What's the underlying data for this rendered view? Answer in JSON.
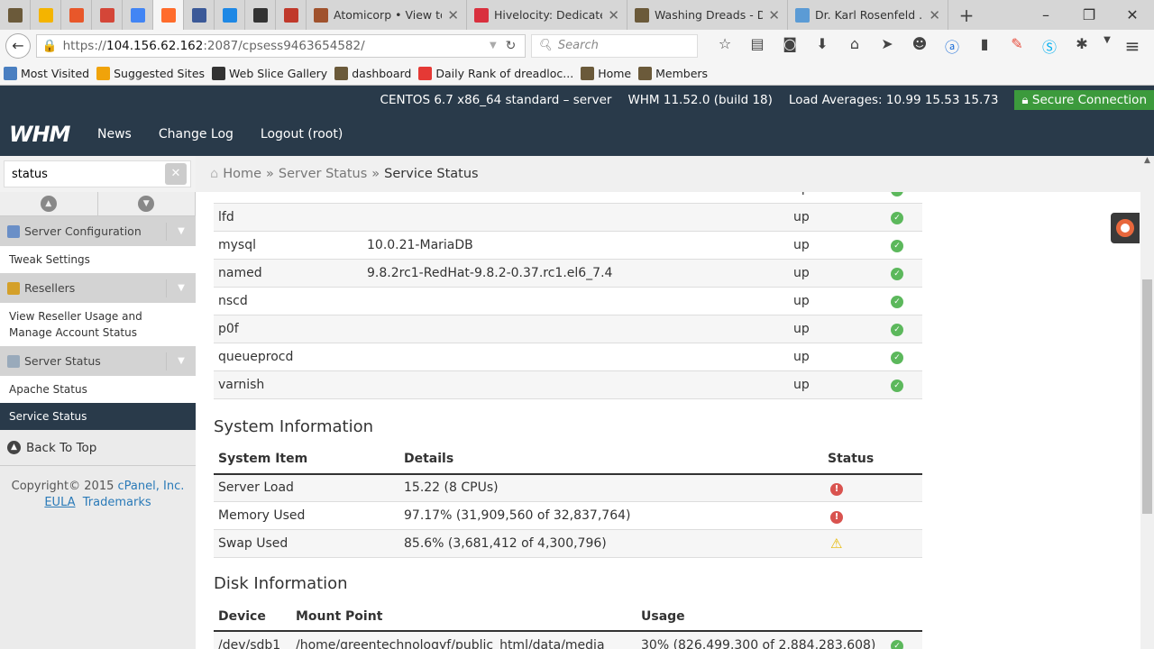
{
  "browser": {
    "pinned_tabs": [
      {
        "icon": "dreadlocks-icon",
        "color": "#6b5a3a"
      },
      {
        "icon": "google-drive-icon",
        "color": "#f4b400"
      },
      {
        "icon": "analytics-icon",
        "color": "#e8572a"
      },
      {
        "icon": "gmail-icon",
        "color": "#d44638"
      },
      {
        "icon": "google-icon",
        "color": "#4285f4"
      },
      {
        "icon": "cpanel-icon",
        "color": "#ff6c2c"
      },
      {
        "icon": "facebook-icon",
        "color": "#3b5998"
      },
      {
        "icon": "arrows-icon",
        "color": "#1e88e5"
      },
      {
        "icon": "globe-icon",
        "color": "#333333"
      },
      {
        "icon": "shield-icon",
        "color": "#c0392b"
      }
    ],
    "tabs": [
      {
        "title": "Atomicorp • View to...",
        "color": "#a0522d"
      },
      {
        "title": "Hivelocity: Dedicate...",
        "color": "#d9303e"
      },
      {
        "title": "Washing Dreads - D...",
        "color": "#6b5a3a"
      },
      {
        "title": "Dr. Karl Rosenfeld ...",
        "color": "#5b9bd5"
      }
    ],
    "new_tab": "+",
    "url": {
      "prefix": "https://",
      "host": "104.156.62.162",
      "path": ":2087/cpsess9463654582/"
    },
    "search_placeholder": "Search",
    "bookmarks": [
      {
        "label": "Most Visited",
        "color": "#4a7fc1"
      },
      {
        "label": "Suggested Sites",
        "color": "#f0a30a"
      },
      {
        "label": "Web Slice Gallery",
        "color": "#333333"
      },
      {
        "label": "dashboard",
        "color": "#6b5a3a"
      },
      {
        "label": "Daily Rank of dreadloc...",
        "color": "#e53935"
      },
      {
        "label": "Home",
        "color": "#6b5a3a"
      },
      {
        "label": "Members",
        "color": "#6b5a3a"
      }
    ]
  },
  "whm": {
    "os": "CENTOS 6.7 x86_64 standard – server",
    "version": "WHM 11.52.0 (build 18)",
    "load": "Load Averages: 10.99 15.53 15.73",
    "secure": "Secure Connection",
    "logo": "WHM",
    "nav": [
      "News",
      "Change Log",
      "Logout (root)"
    ]
  },
  "sidebar": {
    "search_value": "status",
    "groups": [
      {
        "label": "Server Configuration",
        "items": [
          "Tweak Settings"
        ]
      },
      {
        "label": "Resellers",
        "items": [
          "View Reseller Usage and Manage Account Status"
        ]
      },
      {
        "label": "Server Status",
        "items": [
          "Apache Status",
          "Service Status"
        ]
      }
    ],
    "active": "Service Status",
    "back_to_top": "Back To Top",
    "copyright": "Copyright© 2015",
    "company": "cPanel, Inc.",
    "eula": "EULA",
    "trademarks": "Trademarks"
  },
  "breadcrumb": [
    "Home",
    "Server Status",
    "Service Status"
  ],
  "breadcrumb_sep": "»",
  "services": [
    {
      "name": "",
      "version": "",
      "status": "up"
    },
    {
      "name": "lfd",
      "version": "",
      "status": "up"
    },
    {
      "name": "mysql",
      "version": "10.0.21-MariaDB",
      "status": "up"
    },
    {
      "name": "named",
      "version": "9.8.2rc1-RedHat-9.8.2-0.37.rc1.el6_7.4",
      "status": "up"
    },
    {
      "name": "nscd",
      "version": "",
      "status": "up"
    },
    {
      "name": "p0f",
      "version": "",
      "status": "up"
    },
    {
      "name": "queueprocd",
      "version": "",
      "status": "up"
    },
    {
      "name": "varnish",
      "version": "",
      "status": "up"
    }
  ],
  "system": {
    "title": "System Information",
    "headers": [
      "System Item",
      "Details",
      "Status"
    ],
    "rows": [
      {
        "item": "Server Load",
        "details": "15.22 (8 CPUs)",
        "status": "error"
      },
      {
        "item": "Memory Used",
        "details": "97.17% (31,909,560 of 32,837,764)",
        "status": "error"
      },
      {
        "item": "Swap Used",
        "details": "85.6% (3,681,412 of 4,300,796)",
        "status": "warning"
      }
    ]
  },
  "disk": {
    "title": "Disk Information",
    "headers": [
      "Device",
      "Mount Point",
      "Usage"
    ],
    "rows": [
      {
        "device": "/dev/sdb1",
        "mount": "/home/greentechnologyf/public_html/data/media",
        "usage": "30% (826,499,300 of 2,884,283,608)",
        "status": "ok"
      }
    ]
  }
}
